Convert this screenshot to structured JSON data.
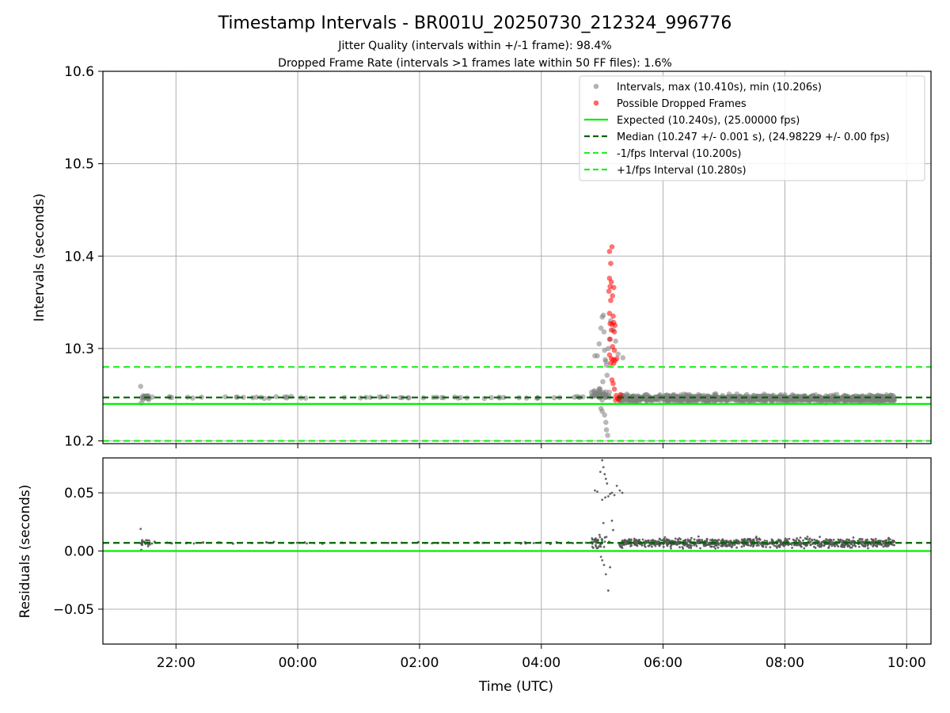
{
  "figure": {
    "title": "Timestamp Intervals - BR001U_20250730_212324_996776",
    "subtitle_1": "Jitter Quality (intervals within +/-1 frame): 98.4%",
    "subtitle_2": "Dropped Frame Rate (intervals >1 frames late within 50 FF files): 1.6%",
    "colors": {
      "points": "#808080",
      "dropped": "#ff0000",
      "expected": "#00ee00",
      "median": "#006400",
      "interval": "#22ee22",
      "grid": "#b0b0b0"
    }
  },
  "chart_data": [
    {
      "type": "scatter",
      "panel": "top",
      "ylabel": "Intervals (seconds)",
      "ylim": [
        10.197,
        10.6
      ],
      "yticks": [
        10.2,
        10.3,
        10.4,
        10.5,
        10.6
      ],
      "ytick_labels": [
        "10.2",
        "10.3",
        "10.4",
        "10.5",
        "10.6"
      ],
      "grid": true,
      "legend_position": "top-right",
      "legend": [
        "Intervals, max (10.410s), min (10.206s)",
        "Possible Dropped Frames",
        "Expected (10.240s), (25.00000 fps)",
        "Median (10.247 +/- 0.001 s), (24.98229 +/- 0.00 fps)",
        "-1/fps Interval (10.200s)",
        "+1/fps Interval (10.280s)"
      ],
      "lines": {
        "expected": 10.24,
        "median": 10.247,
        "minus_one_fps": 10.2,
        "plus_one_fps": 10.28
      },
      "series": [
        {
          "name": "Intervals, max (10.410s), min (10.206s)",
          "segments": [
            {
              "x_start": -2.58,
              "x_end": -2.42,
              "center": 10.247,
              "spread": 0.003,
              "count": 20
            },
            {
              "x_start": -2.42,
              "x_end": 4.75,
              "center": 10.247,
              "spread": 0.001,
              "count": 60
            },
            {
              "x_start": 4.82,
              "x_end": 5.12,
              "center": 10.25,
              "spread": 0.006,
              "count": 40
            },
            {
              "x_start": 5.28,
              "x_end": 9.8,
              "center": 10.246,
              "spread": 0.004,
              "count": 900
            }
          ],
          "points": [
            {
              "x": -2.58,
              "y": 10.259
            },
            {
              "x": -2.57,
              "y": 10.241
            },
            {
              "x": 4.88,
              "y": 10.292
            },
            {
              "x": 4.92,
              "y": 10.292
            },
            {
              "x": 4.95,
              "y": 10.305
            },
            {
              "x": 4.98,
              "y": 10.322
            },
            {
              "x": 5.0,
              "y": 10.334
            },
            {
              "x": 5.02,
              "y": 10.336
            },
            {
              "x": 5.03,
              "y": 10.318
            },
            {
              "x": 5.04,
              "y": 10.298
            },
            {
              "x": 5.05,
              "y": 10.288
            },
            {
              "x": 5.06,
              "y": 10.286
            },
            {
              "x": 5.07,
              "y": 10.282
            },
            {
              "x": 5.08,
              "y": 10.271
            },
            {
              "x": 5.1,
              "y": 10.3
            },
            {
              "x": 5.12,
              "y": 10.31
            },
            {
              "x": 5.14,
              "y": 10.33
            },
            {
              "x": 5.18,
              "y": 10.32
            },
            {
              "x": 5.22,
              "y": 10.308
            },
            {
              "x": 5.26,
              "y": 10.294
            },
            {
              "x": 5.34,
              "y": 10.29
            },
            {
              "x": 4.98,
              "y": 10.235
            },
            {
              "x": 5.0,
              "y": 10.232
            },
            {
              "x": 5.04,
              "y": 10.228
            },
            {
              "x": 5.06,
              "y": 10.22
            },
            {
              "x": 5.07,
              "y": 10.212
            },
            {
              "x": 5.09,
              "y": 10.206
            },
            {
              "x": 5.01,
              "y": 10.264
            }
          ]
        },
        {
          "name": "Possible Dropped Frames",
          "points": [
            {
              "x": 5.12,
              "y": 10.405
            },
            {
              "x": 5.16,
              "y": 10.41
            },
            {
              "x": 5.14,
              "y": 10.392
            },
            {
              "x": 5.12,
              "y": 10.376
            },
            {
              "x": 5.15,
              "y": 10.372
            },
            {
              "x": 5.13,
              "y": 10.367
            },
            {
              "x": 5.11,
              "y": 10.362
            },
            {
              "x": 5.19,
              "y": 10.366
            },
            {
              "x": 5.17,
              "y": 10.357
            },
            {
              "x": 5.14,
              "y": 10.352
            },
            {
              "x": 5.12,
              "y": 10.338
            },
            {
              "x": 5.18,
              "y": 10.335
            },
            {
              "x": 5.13,
              "y": 10.327
            },
            {
              "x": 5.16,
              "y": 10.326
            },
            {
              "x": 5.19,
              "y": 10.328
            },
            {
              "x": 5.21,
              "y": 10.325
            },
            {
              "x": 5.15,
              "y": 10.32
            },
            {
              "x": 5.2,
              "y": 10.318
            },
            {
              "x": 5.13,
              "y": 10.31
            },
            {
              "x": 5.17,
              "y": 10.302
            },
            {
              "x": 5.2,
              "y": 10.298
            },
            {
              "x": 5.12,
              "y": 10.293
            },
            {
              "x": 5.15,
              "y": 10.289
            },
            {
              "x": 5.18,
              "y": 10.288
            },
            {
              "x": 5.21,
              "y": 10.287
            },
            {
              "x": 5.24,
              "y": 10.289
            },
            {
              "x": 5.14,
              "y": 10.284
            },
            {
              "x": 5.19,
              "y": 10.284
            },
            {
              "x": 5.16,
              "y": 10.266
            },
            {
              "x": 5.18,
              "y": 10.262
            },
            {
              "x": 5.2,
              "y": 10.256
            },
            {
              "x": 5.23,
              "y": 10.249
            },
            {
              "x": 5.25,
              "y": 10.246
            },
            {
              "x": 5.27,
              "y": 10.245
            },
            {
              "x": 5.29,
              "y": 10.247
            },
            {
              "x": 5.22,
              "y": 10.244
            },
            {
              "x": 5.3,
              "y": 10.25
            }
          ]
        }
      ]
    },
    {
      "type": "scatter",
      "panel": "bottom",
      "xlabel": "Time (UTC)",
      "ylabel": "Residuals (seconds)",
      "xlim": [
        -3.2,
        10.4
      ],
      "xticks": [
        -2,
        0,
        2,
        4,
        6,
        8,
        10
      ],
      "xtick_labels": [
        "22:00",
        "00:00",
        "02:00",
        "04:00",
        "06:00",
        "08:00",
        "10:00"
      ],
      "ylim": [
        -0.08,
        0.08
      ],
      "yticks": [
        -0.05,
        0.0,
        0.05
      ],
      "ytick_labels": [
        "−0.05",
        "0.00",
        "0.05"
      ],
      "grid": true,
      "lines": {
        "zero": 0.0,
        "median_offset": 0.007
      },
      "series": [
        {
          "name": "Residuals",
          "segments": [
            {
              "x_start": -2.58,
              "x_end": -2.42,
              "center": 0.007,
              "spread": 0.003,
              "count": 20
            },
            {
              "x_start": -2.42,
              "x_end": 4.75,
              "center": 0.007,
              "spread": 0.001,
              "count": 60
            },
            {
              "x_start": 4.82,
              "x_end": 5.12,
              "center": 0.008,
              "spread": 0.006,
              "count": 40
            },
            {
              "x_start": 5.28,
              "x_end": 9.8,
              "center": 0.007,
              "spread": 0.004,
              "count": 900
            }
          ],
          "points": [
            {
              "x": -2.58,
              "y": 0.019
            },
            {
              "x": -2.57,
              "y": 0.001
            },
            {
              "x": 4.88,
              "y": 0.052
            },
            {
              "x": 4.92,
              "y": 0.051
            },
            {
              "x": 4.97,
              "y": 0.068
            },
            {
              "x": 5.0,
              "y": 0.078
            },
            {
              "x": 5.02,
              "y": 0.072
            },
            {
              "x": 5.04,
              "y": 0.066
            },
            {
              "x": 5.06,
              "y": 0.062
            },
            {
              "x": 5.08,
              "y": 0.058
            },
            {
              "x": 5.1,
              "y": 0.047
            },
            {
              "x": 5.13,
              "y": 0.049
            },
            {
              "x": 5.16,
              "y": 0.05
            },
            {
              "x": 5.2,
              "y": 0.048
            },
            {
              "x": 5.24,
              "y": 0.056
            },
            {
              "x": 5.29,
              "y": 0.052
            },
            {
              "x": 5.33,
              "y": 0.05
            },
            {
              "x": 5.0,
              "y": 0.044
            },
            {
              "x": 5.05,
              "y": 0.046
            },
            {
              "x": 4.98,
              "y": -0.005
            },
            {
              "x": 5.0,
              "y": -0.008
            },
            {
              "x": 5.03,
              "y": -0.012
            },
            {
              "x": 5.06,
              "y": -0.02
            },
            {
              "x": 5.1,
              "y": -0.034
            },
            {
              "x": 5.13,
              "y": -0.014
            },
            {
              "x": 5.02,
              "y": 0.024
            },
            {
              "x": 5.16,
              "y": 0.026
            },
            {
              "x": 5.18,
              "y": 0.018
            }
          ]
        }
      ]
    }
  ]
}
